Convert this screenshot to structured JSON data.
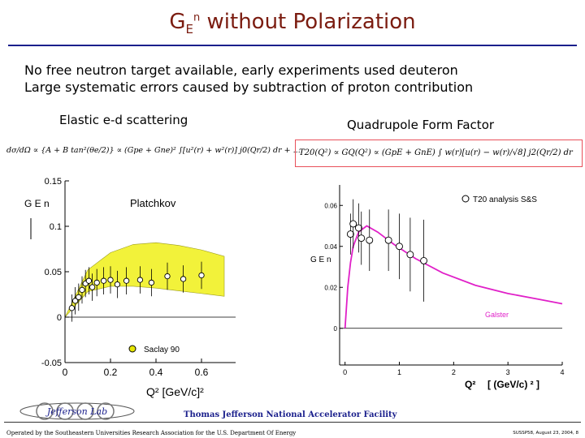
{
  "slide": {
    "title_main": "G",
    "title_sub": "E",
    "title_sup": "n",
    "title_rest": " without Polarization",
    "bullets": [
      "No free neutron target available, early experiments used deuteron",
      "Large systematic errors caused by subtraction of proton contribution"
    ],
    "left_heading": "Elastic e-d scattering",
    "right_heading": "Quadrupole Form Factor",
    "left_formula": "dσ/dΩ ∝ {A + B tan²(θe/2)} ∝ (Gpe + Gne)² ∫[u²(r) + w²(r)] j0(Qr/2) dr + ....",
    "right_formula": "T20(Q²) ∝ GQ(Q²) ∝ (GpE + GnE) ∫ w(r)[u(r) − w(r)/√8] j2(Qr/2) dr"
  },
  "chart_data": [
    {
      "type": "scatter",
      "title": "",
      "annotation": "Platchkov",
      "ylabel": "G E n",
      "xlabel": "Q² [GeV/c]²",
      "x_ticks": [
        "0",
        "0.2",
        "0.4",
        "0.6"
      ],
      "y_ticks": [
        "-0.05",
        "0",
        "0.05",
        "0.1",
        "0.15"
      ],
      "xlim": [
        0,
        0.75
      ],
      "ylim": [
        -0.05,
        0.15
      ],
      "legend": "Saclay 90",
      "band_lower": [
        [
          0.0,
          0.0
        ],
        [
          0.1,
          0.028
        ],
        [
          0.2,
          0.034
        ],
        [
          0.3,
          0.034
        ],
        [
          0.4,
          0.032
        ],
        [
          0.5,
          0.029
        ],
        [
          0.6,
          0.026
        ],
        [
          0.7,
          0.023
        ]
      ],
      "band_upper": [
        [
          0.0,
          0.0
        ],
        [
          0.1,
          0.052
        ],
        [
          0.2,
          0.071
        ],
        [
          0.3,
          0.08
        ],
        [
          0.4,
          0.082
        ],
        [
          0.5,
          0.079
        ],
        [
          0.6,
          0.074
        ],
        [
          0.7,
          0.067
        ]
      ],
      "points": [
        {
          "x": 0.03,
          "y": 0.01
        },
        {
          "x": 0.045,
          "y": 0.018
        },
        {
          "x": 0.06,
          "y": 0.022
        },
        {
          "x": 0.075,
          "y": 0.03
        },
        {
          "x": 0.09,
          "y": 0.037
        },
        {
          "x": 0.105,
          "y": 0.04
        },
        {
          "x": 0.12,
          "y": 0.033
        },
        {
          "x": 0.14,
          "y": 0.038
        },
        {
          "x": 0.17,
          "y": 0.04
        },
        {
          "x": 0.2,
          "y": 0.041
        },
        {
          "x": 0.23,
          "y": 0.036
        },
        {
          "x": 0.27,
          "y": 0.04
        },
        {
          "x": 0.33,
          "y": 0.041
        },
        {
          "x": 0.38,
          "y": 0.038
        },
        {
          "x": 0.45,
          "y": 0.045
        },
        {
          "x": 0.52,
          "y": 0.042
        },
        {
          "x": 0.6,
          "y": 0.046
        }
      ],
      "error": 0.015
    },
    {
      "type": "scatter",
      "ylabel": "G E n",
      "xlabel": "Q²",
      "xlabel_units": "[ (GeV/c) ² ]",
      "x_ticks": [
        "0",
        "1",
        "2",
        "3",
        "4"
      ],
      "y_ticks": [
        "0",
        "0.02",
        "0.04",
        "0.06"
      ],
      "xlim": [
        -0.1,
        4
      ],
      "ylim": [
        -0.01,
        0.07
      ],
      "legend": "T20 analysis S&S",
      "curve_label": "Galster",
      "curve": [
        [
          0,
          0
        ],
        [
          0.05,
          0.02
        ],
        [
          0.1,
          0.032
        ],
        [
          0.15,
          0.04
        ],
        [
          0.25,
          0.047
        ],
        [
          0.4,
          0.05
        ],
        [
          0.6,
          0.047
        ],
        [
          0.9,
          0.041
        ],
        [
          1.3,
          0.034
        ],
        [
          1.8,
          0.027
        ],
        [
          2.4,
          0.021
        ],
        [
          3.0,
          0.017
        ],
        [
          3.6,
          0.014
        ],
        [
          4.0,
          0.012
        ]
      ],
      "points": [
        {
          "x": 0.1,
          "y": 0.046,
          "e": 0.01
        },
        {
          "x": 0.15,
          "y": 0.051,
          "e": 0.012
        },
        {
          "x": 0.25,
          "y": 0.049,
          "e": 0.012
        },
        {
          "x": 0.3,
          "y": 0.044,
          "e": 0.013
        },
        {
          "x": 0.45,
          "y": 0.043,
          "e": 0.015
        },
        {
          "x": 0.8,
          "y": 0.043,
          "e": 0.015
        },
        {
          "x": 1.0,
          "y": 0.04,
          "e": 0.016
        },
        {
          "x": 1.2,
          "y": 0.036,
          "e": 0.018
        },
        {
          "x": 1.45,
          "y": 0.033,
          "e": 0.02
        }
      ]
    }
  ],
  "footer": {
    "lab_name": "Thomas Jefferson National Accelerator Facility",
    "left": "Operated by the Southeastern Universities Research Association for the U.S. Department Of Energy",
    "right": "SUSSP58, August 23, 2004, 8",
    "logo_text": "Jefferson Lab"
  }
}
